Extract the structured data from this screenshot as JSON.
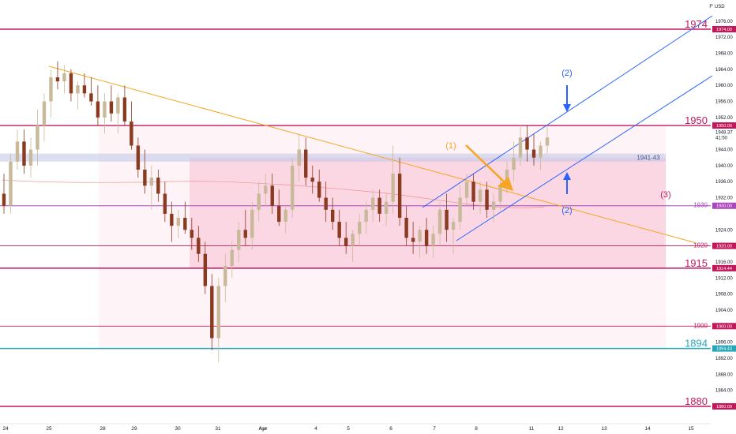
{
  "currency_label": "F' USD",
  "chart_data": {
    "type": "candlestick",
    "instrument_currency": "USD",
    "current_price": "1948.37",
    "countdown": "41:50",
    "ylim": [
      1877,
      1979
    ],
    "yticks": [
      "1976.00",
      "1972.00",
      "1968.00",
      "1964.00",
      "1960.00",
      "1956.00",
      "1952.00",
      "1944.00",
      "1940.00",
      "1936.00",
      "1932.00",
      "1924.00",
      "1916.00",
      "1912.00",
      "1908.00",
      "1904.00",
      "1896.00",
      "1892.00",
      "1888.00",
      "1884.00"
    ],
    "xticks": [
      "24",
      "25",
      "28",
      "29",
      "30",
      "31",
      "Apr",
      "4",
      "5",
      "6",
      "7",
      "8",
      "11",
      "12",
      "13",
      "14",
      "15"
    ],
    "levels": [
      {
        "label": "1974",
        "price": 1974.0,
        "tag": "1974.00",
        "color": "#c2185b",
        "big": true
      },
      {
        "label": "1950",
        "price": 1950.0,
        "tag": "1950.00",
        "color": "#c2185b",
        "big": true
      },
      {
        "label": "1930",
        "price": 1930.0,
        "tag": "1930.00",
        "color": "#ab47bc",
        "big": false
      },
      {
        "label": "1920",
        "price": 1920.0,
        "tag": "1920.00",
        "color": "#c2185b",
        "big": false
      },
      {
        "label": "1915",
        "price": 1914.44,
        "tag": "1914.44",
        "color": "#c2185b",
        "big": true
      },
      {
        "label": "1900",
        "price": 1900.0,
        "tag": "1900.00",
        "color": "#c2185b",
        "big": false
      },
      {
        "label": "1894",
        "price": 1894.43,
        "tag": "1894.43",
        "color": "#26a6b8",
        "big": true
      },
      {
        "label": "1880",
        "price": 1880.0,
        "tag": "1880.00",
        "color": "#c2185b",
        "big": true
      }
    ],
    "zone_label": "1941-43",
    "annotations": {
      "a1": "(1)",
      "a2_top": "(2)",
      "a2_bottom": "(2)",
      "a3": "(3)"
    },
    "candles": [
      [
        1933,
        1938,
        1928,
        1930
      ],
      [
        1930,
        1943,
        1928,
        1941
      ],
      [
        1941,
        1949,
        1939,
        1946
      ],
      [
        1946,
        1949,
        1938,
        1940
      ],
      [
        1940,
        1947,
        1937,
        1944
      ],
      [
        1944,
        1954,
        1940,
        1950
      ],
      [
        1950,
        1958,
        1946,
        1956
      ],
      [
        1956,
        1964,
        1952,
        1962
      ],
      [
        1962,
        1966,
        1959,
        1961
      ],
      [
        1961,
        1965,
        1958,
        1963
      ],
      [
        1963,
        1964,
        1956,
        1958
      ],
      [
        1958,
        1961,
        1954,
        1960
      ],
      [
        1960,
        1963,
        1957,
        1958
      ],
      [
        1958,
        1962,
        1955,
        1956
      ],
      [
        1956,
        1960,
        1950,
        1952
      ],
      [
        1952,
        1958,
        1948,
        1956
      ],
      [
        1956,
        1960,
        1951,
        1953
      ],
      [
        1953,
        1958,
        1948,
        1957
      ],
      [
        1957,
        1960,
        1950,
        1951
      ],
      [
        1951,
        1956,
        1944,
        1945
      ],
      [
        1945,
        1947,
        1937,
        1939
      ],
      [
        1939,
        1944,
        1933,
        1935
      ],
      [
        1935,
        1940,
        1929,
        1937
      ],
      [
        1937,
        1939,
        1931,
        1933
      ],
      [
        1933,
        1936,
        1926,
        1928
      ],
      [
        1928,
        1931,
        1921,
        1925
      ],
      [
        1925,
        1929,
        1922,
        1927
      ],
      [
        1927,
        1931,
        1923,
        1924
      ],
      [
        1924,
        1927,
        1919,
        1922
      ],
      [
        1922,
        1925,
        1916,
        1918
      ],
      [
        1918,
        1921,
        1908,
        1910
      ],
      [
        1910,
        1913,
        1894,
        1897
      ],
      [
        1897,
        1912,
        1891,
        1910
      ],
      [
        1910,
        1918,
        1906,
        1915
      ],
      [
        1915,
        1921,
        1912,
        1919
      ],
      [
        1919,
        1926,
        1916,
        1924
      ],
      [
        1924,
        1929,
        1920,
        1922
      ],
      [
        1922,
        1931,
        1919,
        1929
      ],
      [
        1929,
        1936,
        1926,
        1933
      ],
      [
        1933,
        1938,
        1930,
        1935
      ],
      [
        1935,
        1938,
        1928,
        1930
      ],
      [
        1930,
        1934,
        1925,
        1926
      ],
      [
        1926,
        1930,
        1923,
        1929
      ],
      [
        1929,
        1942,
        1927,
        1940
      ],
      [
        1940,
        1948,
        1936,
        1944
      ],
      [
        1944,
        1947,
        1935,
        1937
      ],
      [
        1937,
        1940,
        1933,
        1936
      ],
      [
        1936,
        1939,
        1931,
        1932
      ],
      [
        1932,
        1936,
        1926,
        1929
      ],
      [
        1929,
        1932,
        1924,
        1926
      ],
      [
        1926,
        1929,
        1920,
        1922
      ],
      [
        1922,
        1926,
        1918,
        1920
      ],
      [
        1920,
        1924,
        1916,
        1923
      ],
      [
        1923,
        1928,
        1920,
        1926
      ],
      [
        1926,
        1931,
        1923,
        1929
      ],
      [
        1929,
        1934,
        1926,
        1932
      ],
      [
        1932,
        1934,
        1926,
        1928
      ],
      [
        1928,
        1933,
        1925,
        1931
      ],
      [
        1931,
        1945,
        1928,
        1938
      ],
      [
        1938,
        1942,
        1925,
        1927
      ],
      [
        1927,
        1930,
        1920,
        1922
      ],
      [
        1922,
        1926,
        1918,
        1921
      ],
      [
        1921,
        1925,
        1917,
        1924
      ],
      [
        1924,
        1927,
        1918,
        1920
      ],
      [
        1920,
        1925,
        1917,
        1923
      ],
      [
        1923,
        1931,
        1920,
        1929
      ],
      [
        1929,
        1933,
        1921,
        1924
      ],
      [
        1924,
        1927,
        1918,
        1926
      ],
      [
        1926,
        1935,
        1924,
        1932
      ],
      [
        1932,
        1938,
        1930,
        1936
      ],
      [
        1936,
        1938,
        1929,
        1931
      ],
      [
        1931,
        1936,
        1928,
        1934
      ],
      [
        1934,
        1936,
        1927,
        1929
      ],
      [
        1929,
        1933,
        1926,
        1931
      ],
      [
        1931,
        1937,
        1929,
        1935
      ],
      [
        1935,
        1941,
        1933,
        1939
      ],
      [
        1939,
        1946,
        1936,
        1942
      ],
      [
        1942,
        1950,
        1940,
        1947
      ],
      [
        1947,
        1950,
        1941,
        1944
      ],
      [
        1944,
        1948,
        1940,
        1942
      ],
      [
        1942,
        1946,
        1939,
        1945
      ],
      [
        1945,
        1950,
        1943,
        1947
      ]
    ]
  }
}
